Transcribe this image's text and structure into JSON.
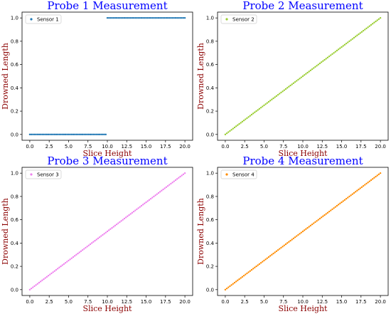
{
  "chart_data": [
    {
      "type": "scatter",
      "title": "Probe 1 Measurement",
      "xlabel": "Slice Height",
      "ylabel": "Drowned Length",
      "xlim": [
        -1.0,
        21.0
      ],
      "ylim": [
        -0.05,
        1.05
      ],
      "xticks": [
        0.0,
        2.5,
        5.0,
        7.5,
        10.0,
        12.5,
        15.0,
        17.5,
        20.0
      ],
      "yticks": [
        0.0,
        0.2,
        0.4,
        0.6,
        0.8,
        1.0
      ],
      "xtick_labels": [
        "0.0",
        "2.5",
        "5.0",
        "7.5",
        "10.0",
        "12.5",
        "15.0",
        "17.5",
        "20.0"
      ],
      "ytick_labels": [
        "0.0",
        "0.2",
        "0.4",
        "0.6",
        "0.8",
        "1.0"
      ],
      "legend_position": "top-left",
      "grid": false,
      "series": [
        {
          "name": "Sensor 1",
          "color": "#1f77b4",
          "marker": "dot",
          "x_range": [
            0,
            20
          ],
          "step": 0.2,
          "values": "step: y = 0 for x < 10, y = 1 for x >= 10"
        }
      ]
    },
    {
      "type": "scatter",
      "title": "Probe 2 Measurement",
      "xlabel": "Slice Height",
      "ylabel": "Drowned Length",
      "xlim": [
        -1.0,
        21.0
      ],
      "ylim": [
        -0.05,
        1.05
      ],
      "xticks": [
        0.0,
        2.5,
        5.0,
        7.5,
        10.0,
        12.5,
        15.0,
        17.5,
        20.0
      ],
      "yticks": [
        0.0,
        0.2,
        0.4,
        0.6,
        0.8,
        1.0
      ],
      "xtick_labels": [
        "0.0",
        "2.5",
        "5.0",
        "7.5",
        "10.0",
        "12.5",
        "15.0",
        "17.5",
        "20.0"
      ],
      "ytick_labels": [
        "0.0",
        "0.2",
        "0.4",
        "0.6",
        "0.8",
        "1.0"
      ],
      "legend_position": "top-left",
      "grid": false,
      "series": [
        {
          "name": "Sensor 2",
          "color": "#9acd32",
          "marker": "dot",
          "x_range": [
            0,
            20
          ],
          "step": 0.2,
          "values": "linear: y = x / 20"
        }
      ]
    },
    {
      "type": "scatter",
      "title": "Probe 3 Measurement",
      "xlabel": "Slice Height",
      "ylabel": "Drowned Length",
      "xlim": [
        -1.0,
        21.0
      ],
      "ylim": [
        -0.05,
        1.05
      ],
      "xticks": [
        0.0,
        2.5,
        5.0,
        7.5,
        10.0,
        12.5,
        15.0,
        17.5,
        20.0
      ],
      "yticks": [
        0.0,
        0.2,
        0.4,
        0.6,
        0.8,
        1.0
      ],
      "xtick_labels": [
        "0.0",
        "2.5",
        "5.0",
        "7.5",
        "10.0",
        "12.5",
        "15.0",
        "17.5",
        "20.0"
      ],
      "ytick_labels": [
        "0.0",
        "0.2",
        "0.4",
        "0.6",
        "0.8",
        "1.0"
      ],
      "legend_position": "top-left",
      "grid": false,
      "series": [
        {
          "name": "Sensor 3",
          "color": "#ee82ee",
          "marker": "dot",
          "x_range": [
            0,
            20
          ],
          "step": 0.2,
          "values": "linear: y = x / 20"
        }
      ]
    },
    {
      "type": "scatter",
      "title": "Probe 4 Measurement",
      "xlabel": "Slice Height",
      "ylabel": "Drowned Length",
      "xlim": [
        -1.0,
        21.0
      ],
      "ylim": [
        -0.05,
        1.05
      ],
      "xticks": [
        0.0,
        2.5,
        5.0,
        7.5,
        10.0,
        12.5,
        15.0,
        17.5,
        20.0
      ],
      "yticks": [
        0.0,
        0.2,
        0.4,
        0.6,
        0.8,
        1.0
      ],
      "xtick_labels": [
        "0.0",
        "2.5",
        "5.0",
        "7.5",
        "10.0",
        "12.5",
        "15.0",
        "17.5",
        "20.0"
      ],
      "ytick_labels": [
        "0.0",
        "0.2",
        "0.4",
        "0.6",
        "0.8",
        "1.0"
      ],
      "legend_position": "top-left",
      "grid": false,
      "series": [
        {
          "name": "Sensor 4",
          "color": "#ff8c00",
          "marker": "dot",
          "x_range": [
            0,
            20
          ],
          "step": 0.2,
          "values": "linear: y = x / 20"
        }
      ]
    }
  ],
  "colors": {
    "title": "#0000ff",
    "axis_label": "#8b0000"
  }
}
